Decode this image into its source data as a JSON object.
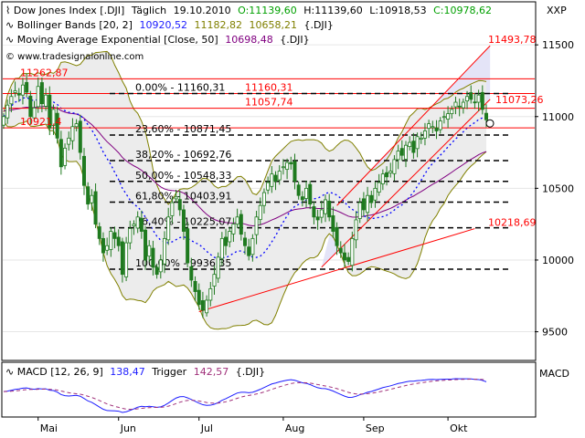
{
  "legend": {
    "row1": {
      "name": "Dow Jones Index [.DJI]",
      "period": "Täglich",
      "date": "19.10.2010",
      "open": "O:11139,60",
      "high": "H:11139,60",
      "low": "L:10918,53",
      "close": "C:10978,62"
    },
    "row2": {
      "name": "Bollinger Bands [20, 2]",
      "mid": "10920,52",
      "upper": "11182,82",
      "lower": "10658,21",
      "symbol": "{.DJI}"
    },
    "row3": {
      "name": "Moving Average Exponential [Close, 50]",
      "value": "10698,48",
      "symbol": "{.DJI}"
    }
  },
  "watermark": "© www.tradesignalonline.com",
  "xxp_label": "XXP",
  "macd_axis_label": "MACD",
  "macd_legend": {
    "name": "MACD [12, 26, 9]",
    "value": "138,47",
    "trigger_label": "Trigger",
    "trigger_value": "142,57",
    "symbol": "{.DJI}"
  },
  "colors": {
    "candle": "#1f7a1f",
    "bollinger": "#808000",
    "ema": "#800080",
    "trend_red": "#ff0000",
    "dotted_blue": "#0000ff",
    "channel_fill": "#d8d8f4",
    "macd": "#1c1cff",
    "trigger": "#a0307a",
    "value_green": "#00a000",
    "value_blue": "#1c1cff",
    "value_purple": "#800080",
    "label_red": "#ff0000"
  },
  "chart_data": {
    "type": "candlestick",
    "ylim": [
      9300,
      11800
    ],
    "y_ticks": [
      9500,
      10000,
      10500,
      11000,
      11500
    ],
    "y_tick_labels": [
      "9500",
      "10000",
      "10500",
      "11000",
      "11500"
    ],
    "x_tick_labels": [
      "Mai",
      "Jun",
      "Jul",
      "Aug",
      "Sep",
      "Okt"
    ],
    "x_tick_index": [
      9,
      30,
      51,
      73,
      94,
      116
    ],
    "close_series": [
      11000,
      11080,
      11140,
      11180,
      11150,
      11220,
      11170,
      11000,
      11060,
      11210,
      11090,
      11150,
      10920,
      11050,
      10850,
      10650,
      10780,
      10850,
      10930,
      10950,
      10750,
      10520,
      10390,
      10450,
      10250,
      10150,
      10050,
      10100,
      10200,
      10150,
      10100,
      9900,
      10120,
      10220,
      10250,
      10300,
      10200,
      10000,
      10100,
      9950,
      9900,
      10000,
      10150,
      10300,
      10400,
      10440,
      10350,
      10200,
      9980,
      9860,
      9780,
      9690,
      9650,
      9720,
      9800,
      9900,
      10020,
      10150,
      10100,
      10200,
      10250,
      10300,
      10180,
      10100,
      10030,
      10150,
      10300,
      10380,
      10470,
      10540,
      10600,
      10550,
      10620,
      10650,
      10680,
      10670,
      10550,
      10450,
      10420,
      10500,
      10390,
      10300,
      10280,
      10350,
      10420,
      10300,
      10200,
      10100,
      10050,
      10000,
      9990,
      10150,
      10280,
      10400,
      10350,
      10450,
      10400,
      10500,
      10540,
      10600,
      10580,
      10620,
      10700,
      10760,
      10730,
      10800,
      10820,
      10750,
      10860,
      10850,
      10900,
      10950,
      10930,
      10900,
      10970,
      11000,
      11020,
      11050,
      11100,
      11070,
      11100,
      11140,
      11120,
      11100,
      11150,
      11050,
      10978
    ],
    "fibonacci": [
      {
        "label": "0.00% - 11160,31",
        "value": 11160.31
      },
      {
        "label": "23,60% - 10871,45",
        "value": 10871.45
      },
      {
        "label": "38,20% - 10692,76",
        "value": 10692.76
      },
      {
        "label": "50,00% - 10548,33",
        "value": 10548.33
      },
      {
        "label": "61,80% - 10403,91",
        "value": 10403.91
      },
      {
        "label": "76,40% - 10225,07",
        "value": 10225.07
      },
      {
        "label": "100,00% - 9936,35",
        "value": 9936.35
      }
    ],
    "horizontal_lines": [
      11262.87,
      11160.31,
      11057.74,
      10921.4
    ],
    "value_labels": [
      "11262,87",
      "11160,31",
      "11057,74",
      "10921,4",
      "11493,78",
      "11073,26",
      "10218,69"
    ],
    "long_trend": {
      "from": [
        51,
        9640
      ],
      "to": [
        123,
        10218.69
      ]
    },
    "channel_lower": {
      "from": [
        83,
        9950
      ],
      "to": [
        127,
        11120
      ]
    },
    "channel_upper": {
      "from": [
        87,
        10380
      ],
      "to": [
        127,
        11493.78
      ]
    },
    "macd": {
      "series": [
        {
          "name": "MACD"
        },
        {
          "name": "Trigger"
        }
      ]
    }
  }
}
